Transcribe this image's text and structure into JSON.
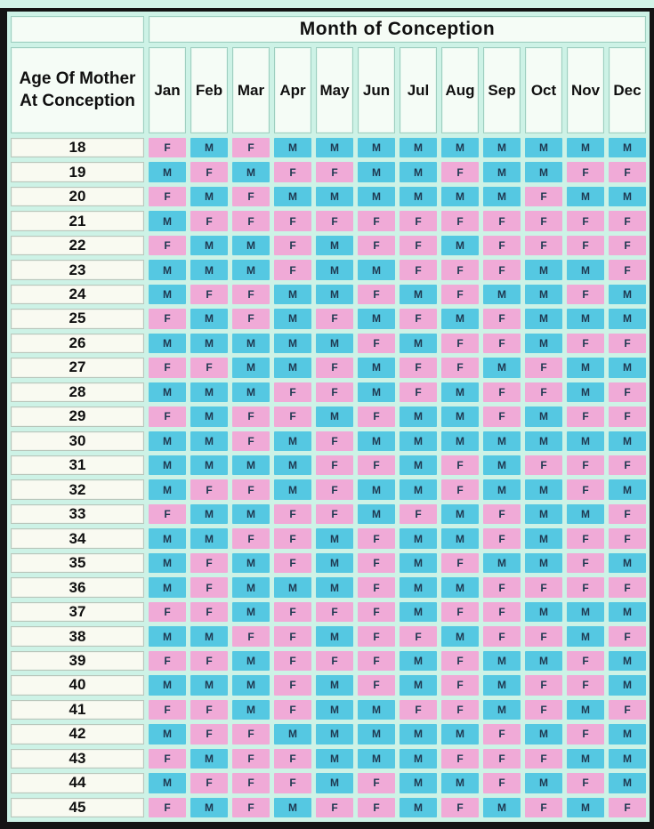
{
  "chart_data": {
    "type": "table",
    "title": "Month of Conception",
    "row_header": "Age Of Mother At Conception",
    "columns": [
      "Jan",
      "Feb",
      "Mar",
      "Apr",
      "May",
      "Jun",
      "Jul",
      "Aug",
      "Sep",
      "Oct",
      "Nov",
      "Dec"
    ],
    "cell_values_meaning": "F and M letters shown in each cell",
    "colors": {
      "female_cell": "#f0aad7",
      "male_cell": "#55c8e2",
      "background": "#cdf2e6",
      "cell_text": "#1e3850",
      "frame": "#141414"
    },
    "rows": [
      {
        "age": "18",
        "cells": [
          "F",
          "M",
          "F",
          "M",
          "M",
          "M",
          "M",
          "M",
          "M",
          "M",
          "M",
          "M"
        ]
      },
      {
        "age": "19",
        "cells": [
          "M",
          "F",
          "M",
          "F",
          "F",
          "M",
          "M",
          "F",
          "M",
          "M",
          "F",
          "F"
        ]
      },
      {
        "age": "20",
        "cells": [
          "F",
          "M",
          "F",
          "M",
          "M",
          "M",
          "M",
          "M",
          "M",
          "F",
          "M",
          "M"
        ]
      },
      {
        "age": "21",
        "cells": [
          "M",
          "F",
          "F",
          "F",
          "F",
          "F",
          "F",
          "F",
          "F",
          "F",
          "F",
          "F"
        ]
      },
      {
        "age": "22",
        "cells": [
          "F",
          "M",
          "M",
          "F",
          "M",
          "F",
          "F",
          "M",
          "F",
          "F",
          "F",
          "F"
        ]
      },
      {
        "age": "23",
        "cells": [
          "M",
          "M",
          "M",
          "F",
          "M",
          "M",
          "F",
          "F",
          "F",
          "M",
          "M",
          "F"
        ]
      },
      {
        "age": "24",
        "cells": [
          "M",
          "F",
          "F",
          "M",
          "M",
          "F",
          "M",
          "F",
          "M",
          "M",
          "F",
          "M"
        ]
      },
      {
        "age": "25",
        "cells": [
          "F",
          "M",
          "F",
          "M",
          "F",
          "M",
          "F",
          "M",
          "F",
          "M",
          "M",
          "M"
        ]
      },
      {
        "age": "26",
        "cells": [
          "M",
          "M",
          "M",
          "M",
          "M",
          "F",
          "M",
          "F",
          "F",
          "M",
          "F",
          "F"
        ]
      },
      {
        "age": "27",
        "cells": [
          "F",
          "F",
          "M",
          "M",
          "F",
          "M",
          "F",
          "F",
          "M",
          "F",
          "M",
          "M"
        ]
      },
      {
        "age": "28",
        "cells": [
          "M",
          "M",
          "M",
          "F",
          "F",
          "M",
          "F",
          "M",
          "F",
          "F",
          "M",
          "F"
        ]
      },
      {
        "age": "29",
        "cells": [
          "F",
          "M",
          "F",
          "F",
          "M",
          "F",
          "M",
          "M",
          "F",
          "M",
          "F",
          "F"
        ]
      },
      {
        "age": "30",
        "cells": [
          "M",
          "M",
          "F",
          "M",
          "F",
          "M",
          "M",
          "M",
          "M",
          "M",
          "M",
          "M"
        ]
      },
      {
        "age": "31",
        "cells": [
          "M",
          "M",
          "M",
          "M",
          "F",
          "F",
          "M",
          "F",
          "M",
          "F",
          "F",
          "F"
        ]
      },
      {
        "age": "32",
        "cells": [
          "M",
          "F",
          "F",
          "M",
          "F",
          "M",
          "M",
          "F",
          "M",
          "M",
          "F",
          "M"
        ]
      },
      {
        "age": "33",
        "cells": [
          "F",
          "M",
          "M",
          "F",
          "F",
          "M",
          "F",
          "M",
          "F",
          "M",
          "M",
          "F"
        ]
      },
      {
        "age": "34",
        "cells": [
          "M",
          "M",
          "F",
          "F",
          "M",
          "F",
          "M",
          "M",
          "F",
          "M",
          "F",
          "F"
        ]
      },
      {
        "age": "35",
        "cells": [
          "M",
          "F",
          "M",
          "F",
          "M",
          "F",
          "M",
          "F",
          "M",
          "M",
          "F",
          "M"
        ]
      },
      {
        "age": "36",
        "cells": [
          "M",
          "F",
          "M",
          "M",
          "M",
          "F",
          "M",
          "M",
          "F",
          "F",
          "F",
          "F"
        ]
      },
      {
        "age": "37",
        "cells": [
          "F",
          "F",
          "M",
          "F",
          "F",
          "F",
          "M",
          "F",
          "F",
          "M",
          "M",
          "M"
        ]
      },
      {
        "age": "38",
        "cells": [
          "M",
          "M",
          "F",
          "F",
          "M",
          "F",
          "F",
          "M",
          "F",
          "F",
          "M",
          "F"
        ]
      },
      {
        "age": "39",
        "cells": [
          "F",
          "F",
          "M",
          "F",
          "F",
          "F",
          "M",
          "F",
          "M",
          "M",
          "F",
          "M"
        ]
      },
      {
        "age": "40",
        "cells": [
          "M",
          "M",
          "M",
          "F",
          "M",
          "F",
          "M",
          "F",
          "M",
          "F",
          "F",
          "M"
        ]
      },
      {
        "age": "41",
        "cells": [
          "F",
          "F",
          "M",
          "F",
          "M",
          "M",
          "F",
          "F",
          "M",
          "F",
          "M",
          "F"
        ]
      },
      {
        "age": "42",
        "cells": [
          "M",
          "F",
          "F",
          "M",
          "M",
          "M",
          "M",
          "M",
          "F",
          "M",
          "F",
          "M"
        ]
      },
      {
        "age": "43",
        "cells": [
          "F",
          "M",
          "F",
          "F",
          "M",
          "M",
          "M",
          "F",
          "F",
          "F",
          "M",
          "M"
        ]
      },
      {
        "age": "44",
        "cells": [
          "M",
          "F",
          "F",
          "F",
          "M",
          "F",
          "M",
          "M",
          "F",
          "M",
          "F",
          "M"
        ]
      },
      {
        "age": "45",
        "cells": [
          "F",
          "M",
          "F",
          "M",
          "F",
          "F",
          "M",
          "F",
          "M",
          "F",
          "M",
          "F"
        ]
      }
    ]
  }
}
